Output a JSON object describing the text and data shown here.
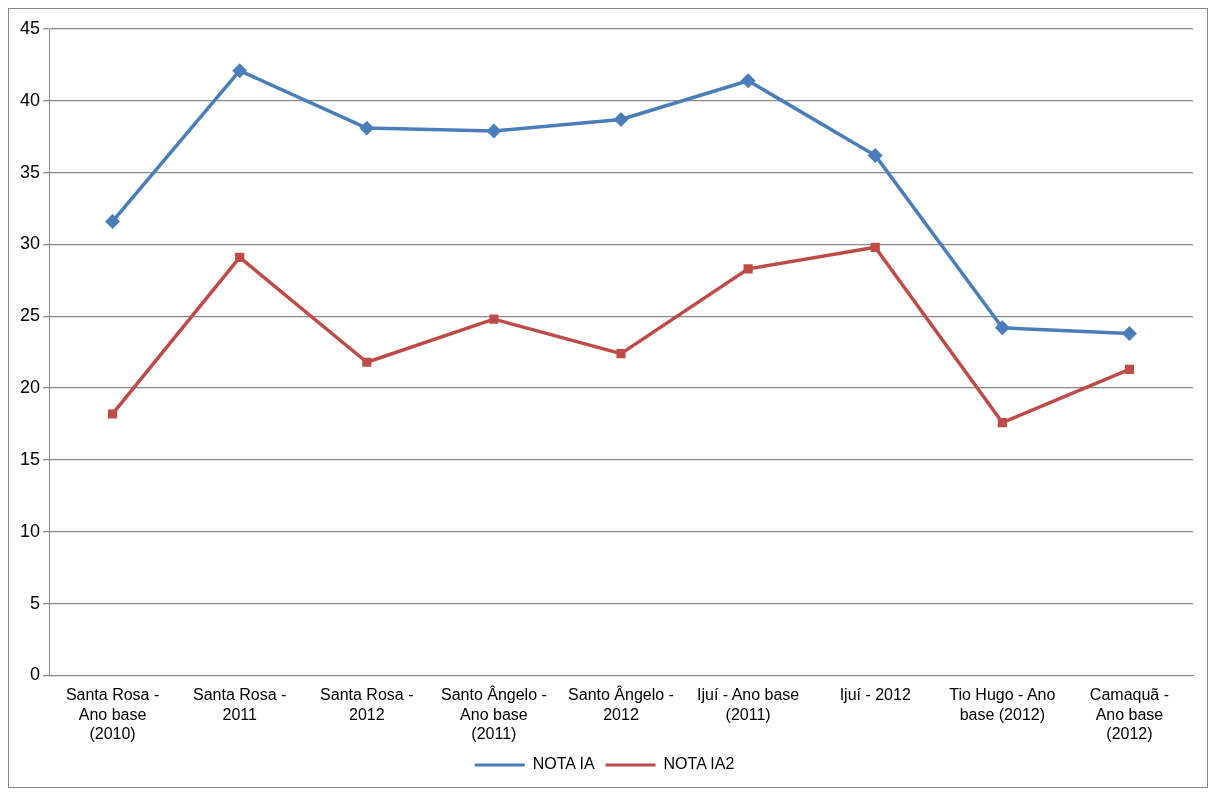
{
  "chart_data": {
    "type": "line",
    "categories": [
      "Santa Rosa - Ano base (2010)",
      "Santa Rosa - 2011",
      "Santa Rosa - 2012",
      "Santo Ângelo - Ano base (2011)",
      "Santo Ângelo - 2012",
      "Ijuí - Ano base (2011)",
      "Ijuí - 2012",
      "Tio Hugo - Ano base (2012)",
      "Camaquã - Ano base (2012)"
    ],
    "series": [
      {
        "name": "NOTA IA",
        "color": "#4a7ebb",
        "marker": "diamond",
        "values": [
          31.6,
          42.1,
          38.1,
          37.9,
          38.7,
          41.4,
          36.2,
          24.2,
          23.8
        ]
      },
      {
        "name": "NOTA IA2",
        "color": "#be4b48",
        "marker": "square",
        "values": [
          18.2,
          29.1,
          21.8,
          24.8,
          22.4,
          28.3,
          29.8,
          17.6,
          21.3
        ]
      }
    ],
    "ylim": [
      0,
      45
    ],
    "yticks": [
      0,
      5,
      10,
      15,
      20,
      25,
      30,
      35,
      40,
      45
    ],
    "grid": "y",
    "legend": "bottom",
    "line_style": "solid"
  }
}
